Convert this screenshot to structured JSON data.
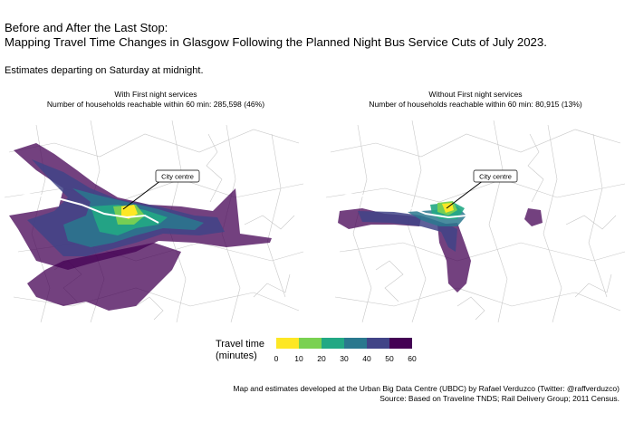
{
  "title": {
    "line1": "Before and After the Last Stop:",
    "line2": "Mapping Travel Time Changes in Glasgow Following the Planned Night Bus Service Cuts of July 2023."
  },
  "subtitle": "Estimates departing on Saturday at midnight.",
  "panels": [
    {
      "heading": "With First night services",
      "households": "Number of households reachable within 60 min: 285,598 (46%)",
      "callout": "City centre"
    },
    {
      "heading": "Without First night services",
      "households": "Number of households reachable within 60 min: 80,915 (13%)",
      "callout": "City centre"
    }
  ],
  "legend": {
    "title_line1": "Travel time",
    "title_line2": "(minutes)",
    "ticks": [
      "0",
      "10",
      "20",
      "30",
      "40",
      "50",
      "60"
    ],
    "colors": [
      "#fde725",
      "#7ad151",
      "#22a884",
      "#2a788e",
      "#414487",
      "#440154"
    ]
  },
  "caption": {
    "line1": "Map and estimates developed at the Urban Big Data Centre (UBDC) by Rafael Verduzco (Twitter: @raffverduzco)",
    "line2": "Source: Based on Traveline TNDS; Rail Delivery Group; 2011 Census."
  }
}
